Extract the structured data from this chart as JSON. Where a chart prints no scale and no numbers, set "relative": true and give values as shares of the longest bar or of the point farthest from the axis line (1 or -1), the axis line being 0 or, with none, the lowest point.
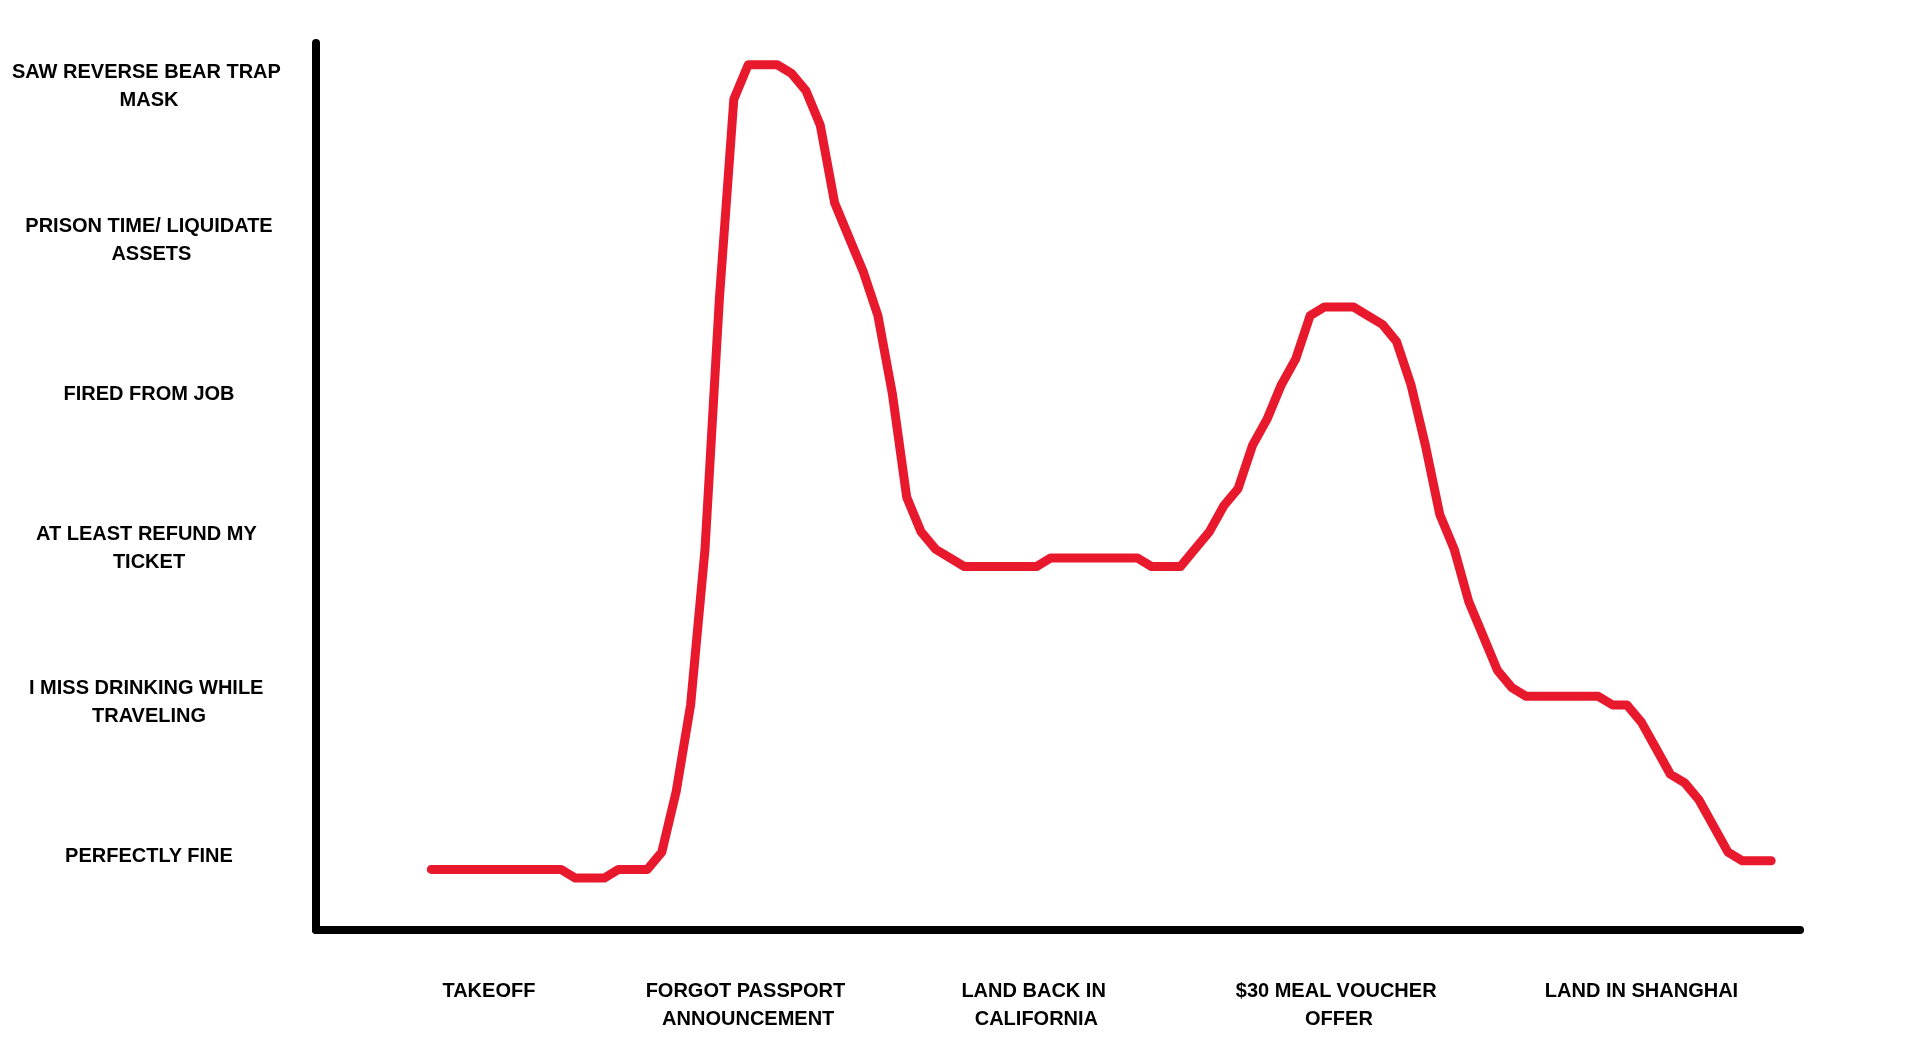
{
  "chart_data": {
    "type": "line",
    "relative": true,
    "categories": [
      null,
      null,
      null,
      null,
      null,
      null,
      null,
      null,
      null,
      null,
      null,
      null,
      "TAKEOFF",
      null,
      null,
      null,
      null,
      null,
      null,
      null,
      null,
      null,
      null,
      null,
      null,
      null,
      null,
      null,
      null,
      null,
      "FORGOT PASSPORT ANNOUNCEMENT",
      null,
      null,
      null,
      null,
      null,
      null,
      null,
      null,
      null,
      null,
      null,
      null,
      null,
      null,
      null,
      null,
      null,
      null,
      null,
      "LAND BACK IN CALIFORNIA",
      null,
      null,
      null,
      null,
      null,
      null,
      null,
      null,
      null,
      null,
      null,
      null,
      null,
      null,
      null,
      null,
      null,
      null,
      null,
      null,
      "$30 MEAL VOUCHER OFFER",
      null,
      null,
      null,
      null,
      null,
      null,
      null,
      null,
      null,
      null,
      null,
      null,
      null,
      null,
      null,
      null,
      null,
      null,
      null,
      null,
      "LAND IN SHANGHAI",
      null,
      null,
      null,
      null,
      null,
      null,
      null,
      null,
      null,
      null,
      null
    ],
    "series": [
      {
        "color": "#e8192c",
        "values": [
          null,
          null,
          null,
          null,
          null,
          null,
          null,
          null,
          0.07,
          0.07,
          0.07,
          0.07,
          0.07,
          0.07,
          0.07,
          0.07,
          0.07,
          0.07,
          0.06,
          0.06,
          0.06,
          0.07,
          0.07,
          0.07,
          0.09,
          0.16,
          0.26,
          0.44,
          0.73,
          0.96,
          1,
          1,
          1,
          0.99,
          0.97,
          0.93,
          0.84,
          0.8,
          0.76,
          0.71,
          0.62,
          0.5,
          0.46,
          0.44,
          0.43,
          0.42,
          0.42,
          0.42,
          0.42,
          0.42,
          0.42,
          0.43,
          0.43,
          0.43,
          0.43,
          0.43,
          0.43,
          0.43,
          0.42,
          0.42,
          0.42,
          0.44,
          0.46,
          0.49,
          0.51,
          0.56,
          0.59,
          0.63,
          0.66,
          0.71,
          0.72,
          0.72,
          0.72,
          0.71,
          0.7,
          0.68,
          0.63,
          0.56,
          0.48,
          0.44,
          0.38,
          0.34,
          0.3,
          0.28,
          0.27,
          0.27,
          0.27,
          0.27,
          0.27,
          0.27,
          0.26,
          0.26,
          0.24,
          0.21,
          0.18,
          0.17,
          0.15,
          0.12,
          0.09,
          0.08,
          0.08,
          0.08,
          null,
          null
        ]
      }
    ],
    "annotations": [
      "PERFECTLY FINE",
      "I MISS DRINKING WHILE TRAVELING",
      "AT LEAST REFUND MY TICKET",
      "FIRED FROM JOB",
      "PRISON TIME/ LIQUIDATE ASSETS",
      "SAW REVERSE BEAR TRAP MASK"
    ]
  }
}
